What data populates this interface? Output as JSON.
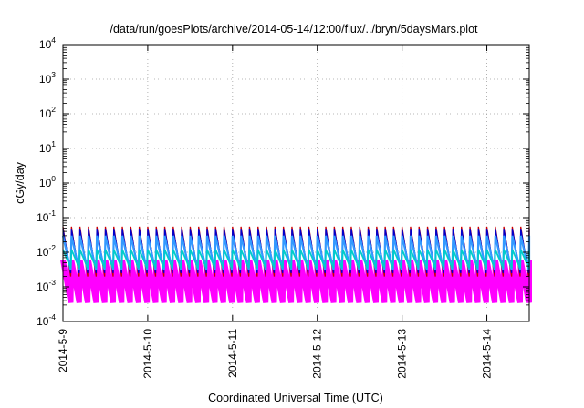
{
  "chart_data": {
    "type": "line",
    "title": "/data/run/goesPlots/archive/2014-05-14/12:00/flux/../bryn/5daysMars.plot",
    "xlabel": "Coordinated Universal Time (UTC)",
    "ylabel": "cGy/day",
    "x_ticks": [
      "2014-5-9",
      "2014-5-10",
      "2014-5-11",
      "2014-5-12",
      "2014-5-13",
      "2014-5-14"
    ],
    "x_range": [
      "2014-05-09T00:00",
      "2014-05-14T12:00"
    ],
    "y_scale": "log",
    "y_range": [
      0.0001,
      10000
    ],
    "y_ticks": [
      {
        "base": "10",
        "exp": "-4"
      },
      {
        "base": "10",
        "exp": "-3"
      },
      {
        "base": "10",
        "exp": "-2"
      },
      {
        "base": "10",
        "exp": "-1"
      },
      {
        "base": "10",
        "exp": "0"
      },
      {
        "base": "10",
        "exp": "1"
      },
      {
        "base": "10",
        "exp": "2"
      },
      {
        "base": "10",
        "exp": "3"
      },
      {
        "base": "10",
        "exp": "4"
      }
    ],
    "grid": true,
    "sawtooth_period_days": 0.1,
    "series": [
      {
        "color": "#ff00ff",
        "peak": 0.006,
        "trough": 0.00035,
        "width": 6
      },
      {
        "color": "#cc0000",
        "peak": 0.055,
        "trough": 0.002,
        "width": 1.3
      },
      {
        "color": "#0000cc",
        "peak": 0.048,
        "trough": 0.0025,
        "width": 1.3
      },
      {
        "color": "#3399ff",
        "peak": 0.03,
        "trough": 0.003,
        "width": 2.2
      },
      {
        "color": "#00cccc",
        "peak": 0.012,
        "trough": 0.0035,
        "width": 1.8
      }
    ]
  }
}
